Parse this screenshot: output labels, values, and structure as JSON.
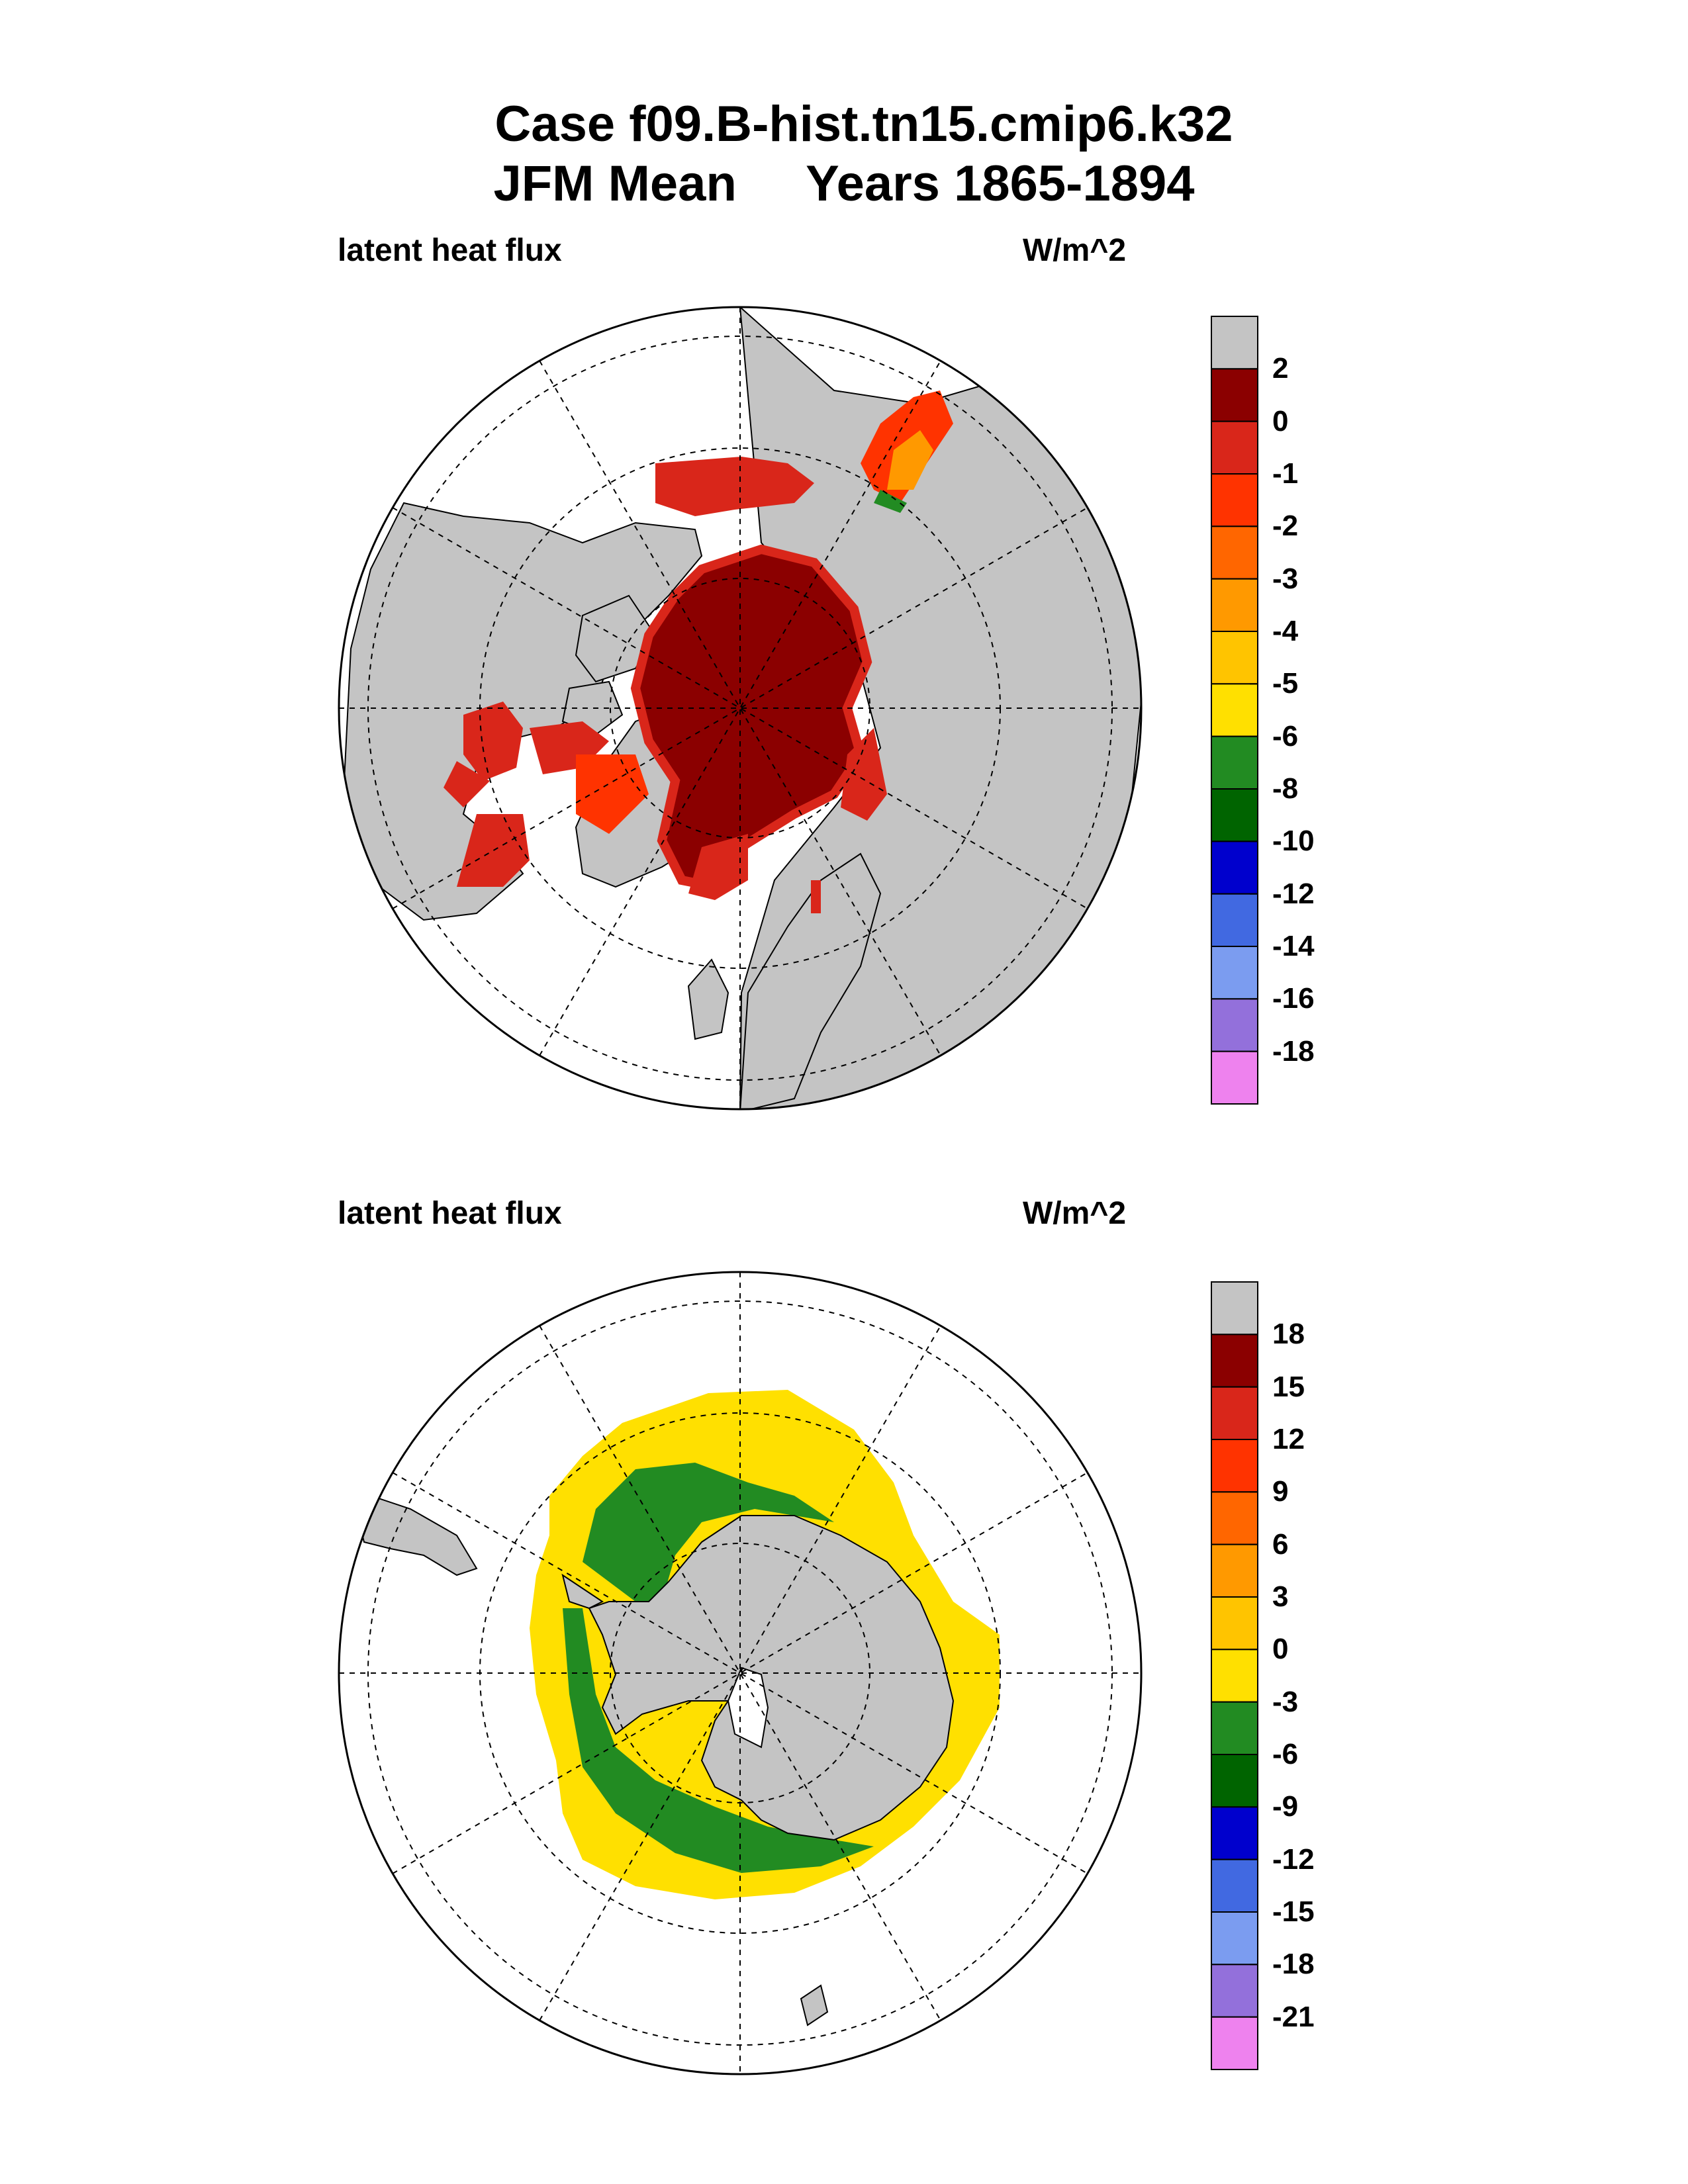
{
  "figure": {
    "title_line1": "Case f09.B-hist.tn15.cmip6.k32",
    "title_line2": "JFM Mean     Years 1865-1894"
  },
  "panels": [
    {
      "hemisphere": "north",
      "variable_label": "latent heat flux",
      "units_label": "W/m^2",
      "colorbar": {
        "labels": [
          "2",
          "0",
          "-1",
          "-2",
          "-3",
          "-4",
          "-5",
          "-6",
          "-8",
          "-10",
          "-12",
          "-14",
          "-16",
          "-18"
        ],
        "colors": [
          "#c4c4c4",
          "#8b0000",
          "#d9261a",
          "#ff3300",
          "#ff6600",
          "#ff9900",
          "#ffc400",
          "#ffe000",
          "#228b22",
          "#006400",
          "#0000cd",
          "#4169e1",
          "#7b9cf0",
          "#9370db",
          "#ee82ee"
        ]
      }
    },
    {
      "hemisphere": "south",
      "variable_label": "latent heat flux",
      "units_label": "W/m^2",
      "colorbar": {
        "labels": [
          "18",
          "15",
          "12",
          "9",
          "6",
          "3",
          "0",
          "-3",
          "-6",
          "-9",
          "-12",
          "-15",
          "-18",
          "-21"
        ],
        "colors": [
          "#c4c4c4",
          "#8b0000",
          "#d9261a",
          "#ff3300",
          "#ff6600",
          "#ff9900",
          "#ffc400",
          "#ffe000",
          "#228b22",
          "#006400",
          "#0000cd",
          "#4169e1",
          "#7b9cf0",
          "#9370db",
          "#ee82ee"
        ]
      }
    }
  ]
}
